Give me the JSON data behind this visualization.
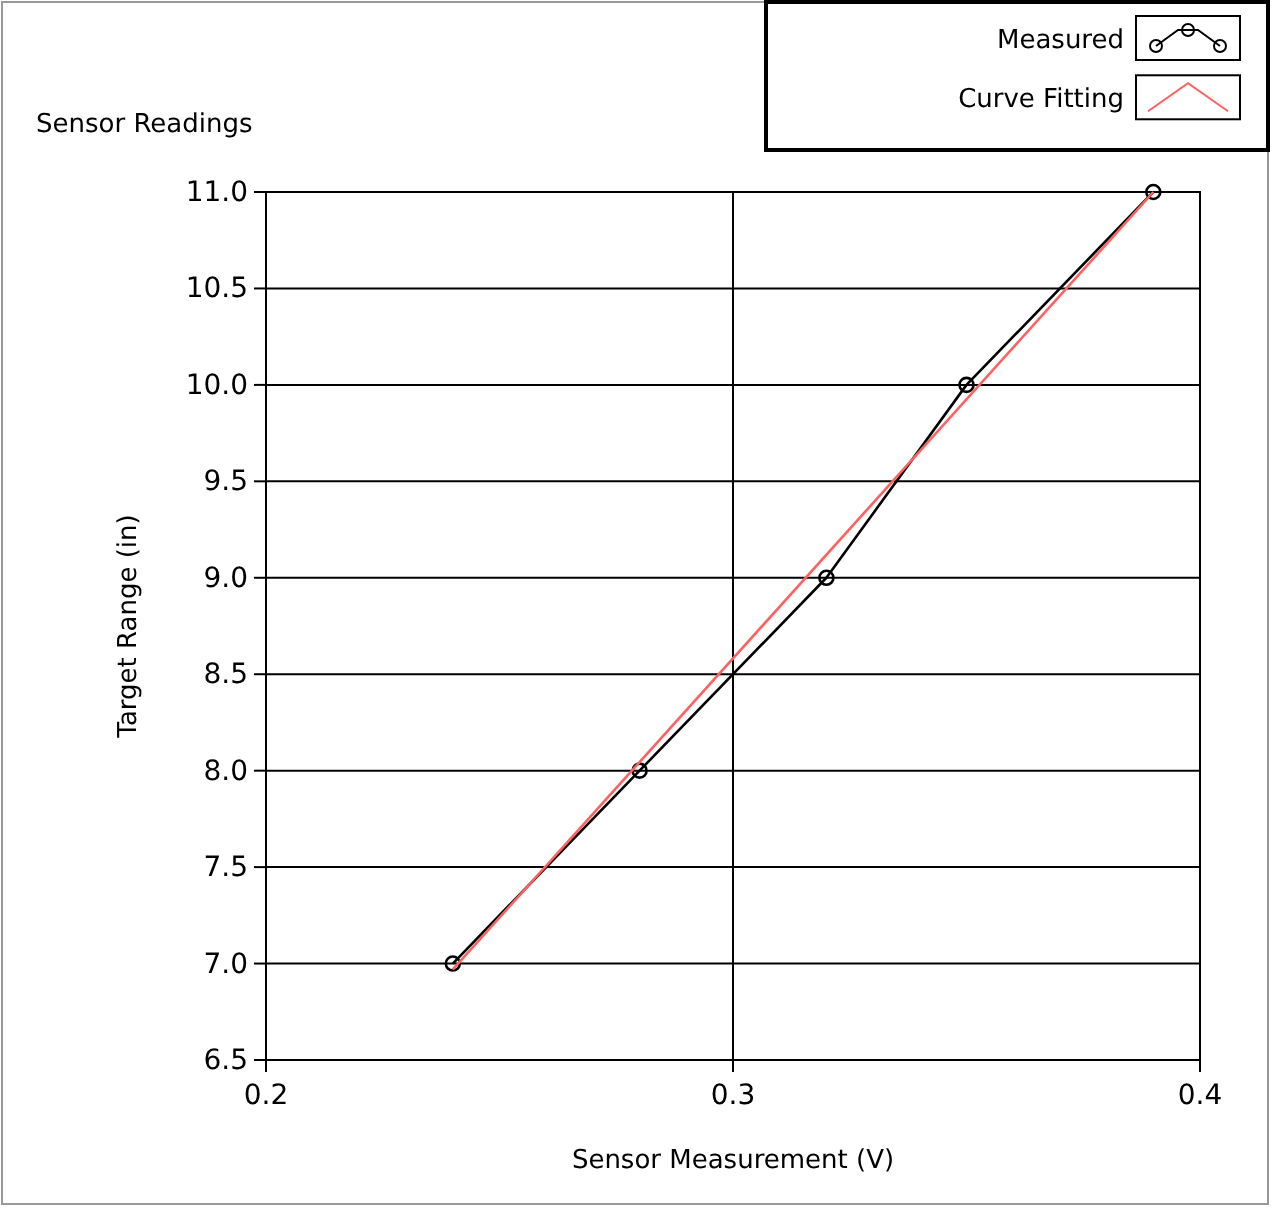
{
  "chart_data": {
    "type": "line",
    "title": "Sensor Readings",
    "xlabel": "Sensor Measurement (V)",
    "ylabel": "Target Range (in)",
    "xlim": [
      0.2,
      0.4
    ],
    "xticks": [
      0.2,
      0.3,
      0.4
    ],
    "ylim": [
      6.5,
      11.0
    ],
    "yticks": [
      {
        "value": 6.5,
        "label": "6.5"
      },
      {
        "value": 7,
        "label": "7.0"
      },
      {
        "value": 7.5,
        "label": "7.5"
      },
      {
        "value": 8,
        "label": "8.0"
      },
      {
        "value": 8.5,
        "label": "8.5"
      },
      {
        "value": 9,
        "label": "9.0"
      },
      {
        "value": 9.5,
        "label": "9.5"
      },
      {
        "value": 10,
        "label": "10.0"
      },
      {
        "value": 10.5,
        "label": "10.5"
      },
      {
        "value": 11,
        "label": "11.0"
      }
    ],
    "grid": true,
    "legend": "top right",
    "series": [
      {
        "name": "Measured",
        "color": "#000000",
        "marker": "circle",
        "x": [
          0.24,
          0.28,
          0.32,
          0.35,
          0.39
        ],
        "values": [
          7,
          8,
          9,
          10,
          11
        ]
      },
      {
        "name": "Curve Fitting",
        "color": "#ff6060",
        "marker": "none",
        "x": [
          0.24,
          0.39
        ],
        "values": [
          6.97,
          11.0
        ]
      }
    ]
  }
}
